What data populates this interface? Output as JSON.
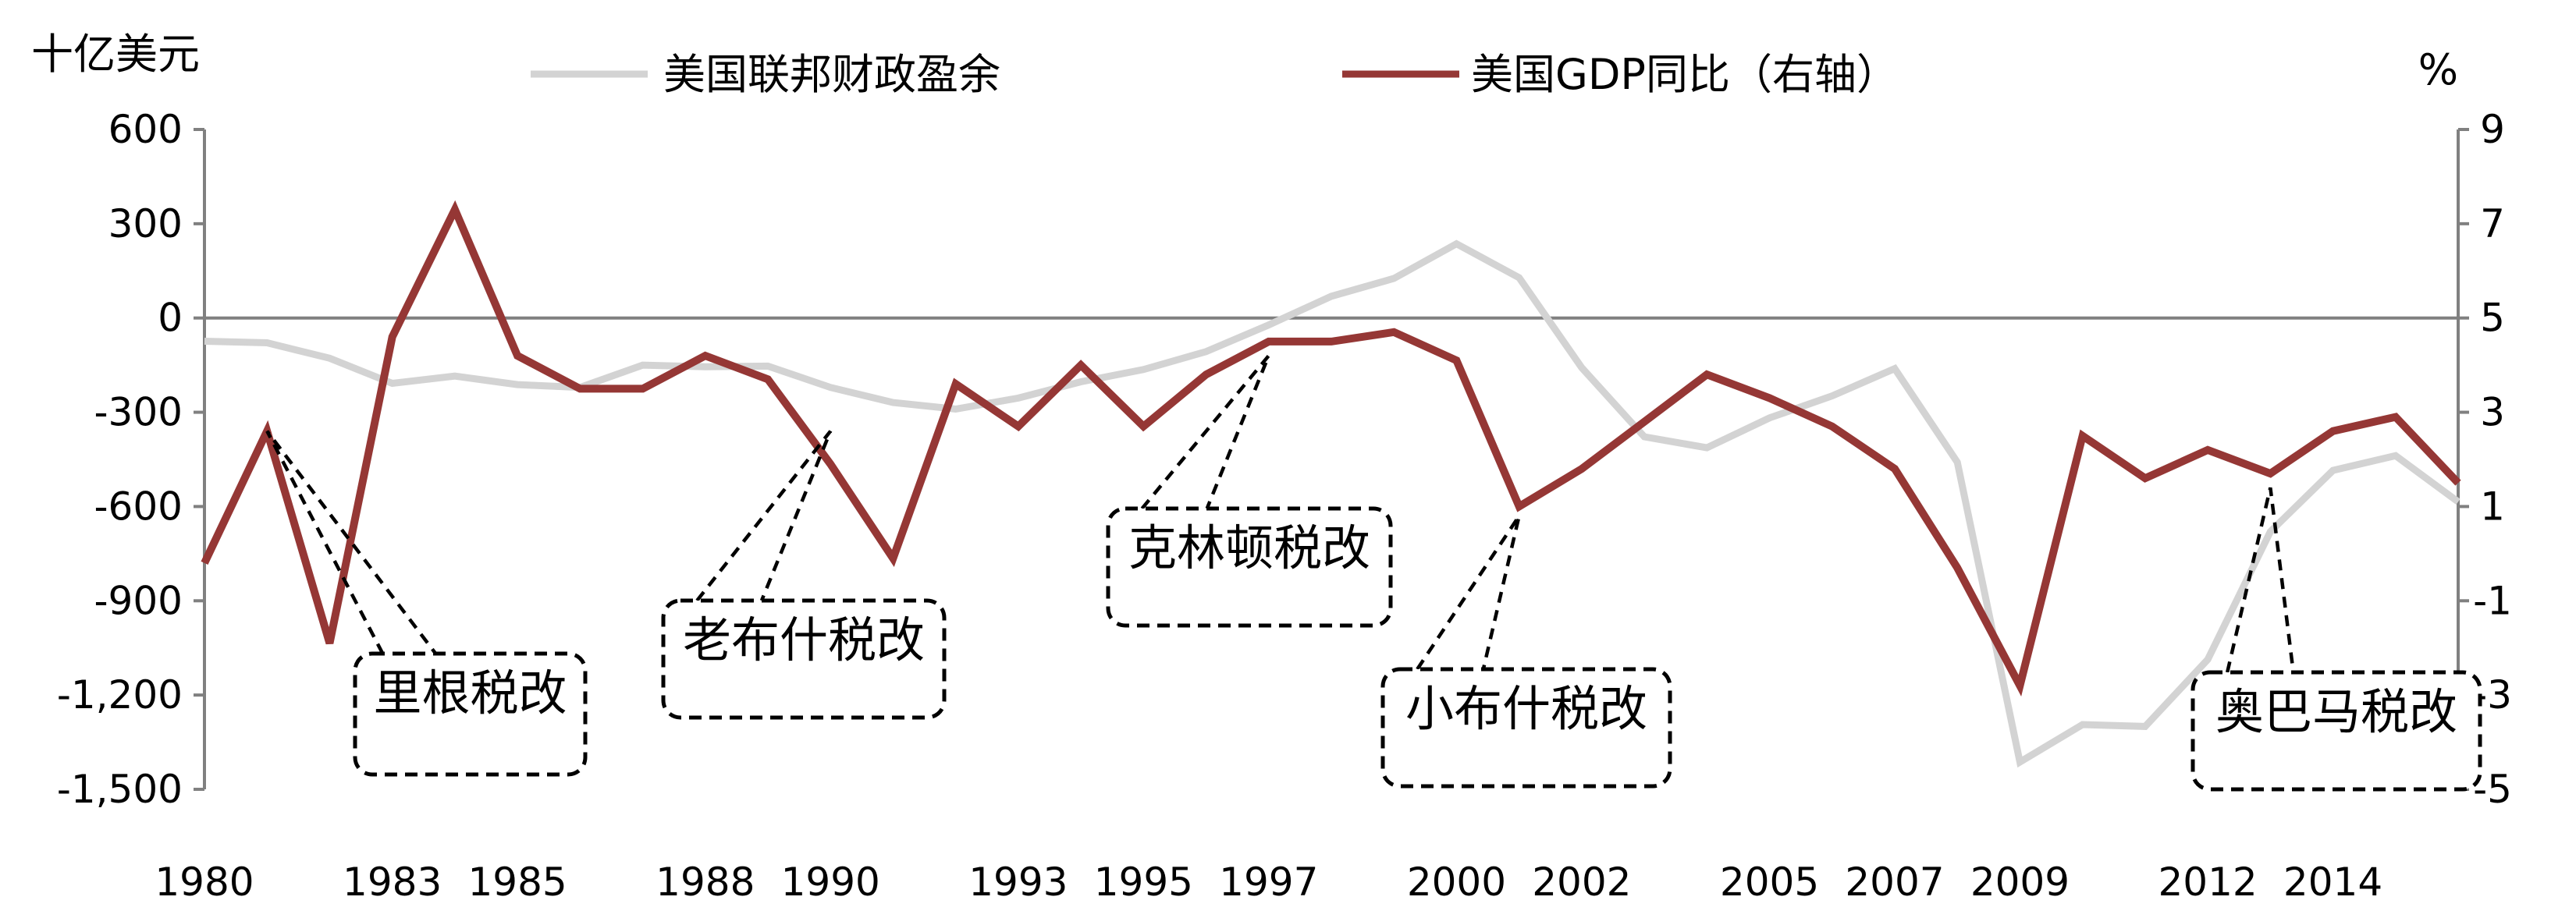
{
  "chart_data": {
    "type": "line",
    "left_unit": "十亿美元",
    "right_unit": "%",
    "x_tick_labels": [
      "1980",
      "1983",
      "1985",
      "1988",
      "1990",
      "1993",
      "1995",
      "1997",
      "2000",
      "2002",
      "2005",
      "2007",
      "2009",
      "2012",
      "2014"
    ],
    "years": [
      1980,
      1981,
      1982,
      1983,
      1984,
      1985,
      1986,
      1987,
      1988,
      1989,
      1990,
      1991,
      1992,
      1993,
      1994,
      1995,
      1996,
      1997,
      1998,
      1999,
      2000,
      2001,
      2002,
      2003,
      2004,
      2005,
      2006,
      2007,
      2008,
      2009,
      2010,
      2011,
      2012,
      2013,
      2014,
      2015,
      2016
    ],
    "y_left": {
      "range": [
        -1500,
        600
      ],
      "ticks": [
        600,
        300,
        0,
        -300,
        -600,
        -900,
        -1200,
        -1500
      ],
      "tick_labels": [
        "600",
        "300",
        "0",
        "-300",
        "-600",
        "-900",
        "-1,200",
        "-1,500"
      ]
    },
    "y_right": {
      "range": [
        -5,
        9
      ],
      "ticks": [
        9,
        7,
        5,
        3,
        1,
        -1,
        -3,
        -5
      ],
      "tick_labels": [
        "9",
        "7",
        "5",
        "3",
        "1",
        "-1",
        "-3",
        "-5"
      ]
    },
    "zero_line": true,
    "grid": false,
    "legend_position": "top",
    "series": [
      {
        "name": "美国联邦财政盈余",
        "axis": "left",
        "color": "#d3d3d3",
        "values": [
          -74,
          -79,
          -128,
          -208,
          -185,
          -212,
          -221,
          -150,
          -155,
          -153,
          -221,
          -269,
          -290,
          -255,
          -203,
          -164,
          -107,
          -22,
          69,
          126,
          236,
          128,
          -158,
          -378,
          -413,
          -318,
          -248,
          -161,
          -459,
          -1413,
          -1294,
          -1300,
          -1087,
          -680,
          -485,
          -438,
          -585
        ]
      },
      {
        "name": "美国GDP同比（右轴）",
        "axis": "right",
        "color": "#953735",
        "values": [
          -0.2,
          2.6,
          -1.9,
          4.6,
          7.3,
          4.2,
          3.5,
          3.5,
          4.2,
          3.7,
          1.9,
          -0.1,
          3.6,
          2.7,
          4.0,
          2.7,
          3.8,
          4.5,
          4.5,
          4.7,
          4.1,
          1.0,
          1.8,
          2.8,
          3.8,
          3.3,
          2.7,
          1.8,
          -0.3,
          -2.8,
          2.5,
          1.6,
          2.2,
          1.7,
          2.6,
          2.9,
          1.5
        ]
      }
    ],
    "annotations": [
      {
        "label": "里根税改",
        "year": 1981,
        "value": 2.6
      },
      {
        "label": "老布什税改",
        "year": 1990,
        "value": 2.6
      },
      {
        "label": "克林顿税改",
        "year": 1997,
        "value": 4.2
      },
      {
        "label": "小布什税改",
        "year": 2001,
        "value": 0.8
      },
      {
        "label": "奥巴马税改",
        "year": 2013,
        "value": 1.4
      }
    ]
  }
}
